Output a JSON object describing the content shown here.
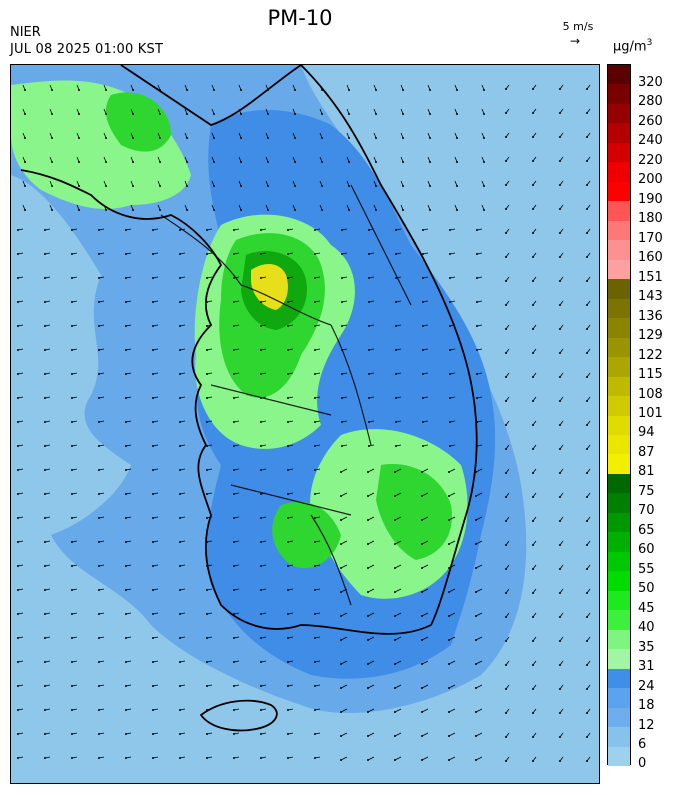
{
  "header": {
    "title": "PM-10",
    "agency": "NIER",
    "timestamp": "JUL 08 2025 01:00 KST",
    "wind_reference": "5 m/s",
    "unit_base": "μg/m",
    "unit_exp": "3"
  },
  "legend": {
    "labels": [
      "320",
      "280",
      "260",
      "240",
      "220",
      "200",
      "190",
      "180",
      "170",
      "160",
      "151",
      "143",
      "136",
      "129",
      "122",
      "115",
      "108",
      "101",
      "94",
      "87",
      "81",
      "75",
      "70",
      "65",
      "60",
      "55",
      "50",
      "45",
      "40",
      "35",
      "31",
      "24",
      "18",
      "12",
      "6",
      "0"
    ],
    "colors": [
      "#5a0000",
      "#7a0000",
      "#950000",
      "#b40000",
      "#d40000",
      "#ee0000",
      "#ff0000",
      "#ff5555",
      "#ff7878",
      "#ff9090",
      "#ffa0a0",
      "#6b6300",
      "#7c7400",
      "#8b8400",
      "#9a9400",
      "#aba600",
      "#bfba00",
      "#d0ca00",
      "#e0dc00",
      "#eae600",
      "#f2f000",
      "#006a00",
      "#008000",
      "#009800",
      "#00b000",
      "#00c800",
      "#00dc00",
      "#1ee81e",
      "#3cf03c",
      "#7ef57e",
      "#a2f5a2",
      "#3f8fe8",
      "#5aa3ee",
      "#6eaeec",
      "#86c2ea",
      "#9dd2ee"
    ],
    "first_block_top": 0,
    "block_height": 19.5
  },
  "map": {
    "background_level": "6-12 μg/m3 (light blue)",
    "features": [
      "PM-10 concentration field",
      "wind vector arrows",
      "Korean peninsula coastline and province boundaries"
    ],
    "contour_colors": {
      "light_blue": "#8ec7ea",
      "mid_blue": "#68a9e9",
      "deep_blue": "#3f8de6",
      "light_green": "#8af58a",
      "green": "#2fd62f",
      "dark_green": "#0fa80f",
      "yellow": "#e6df1a"
    }
  }
}
